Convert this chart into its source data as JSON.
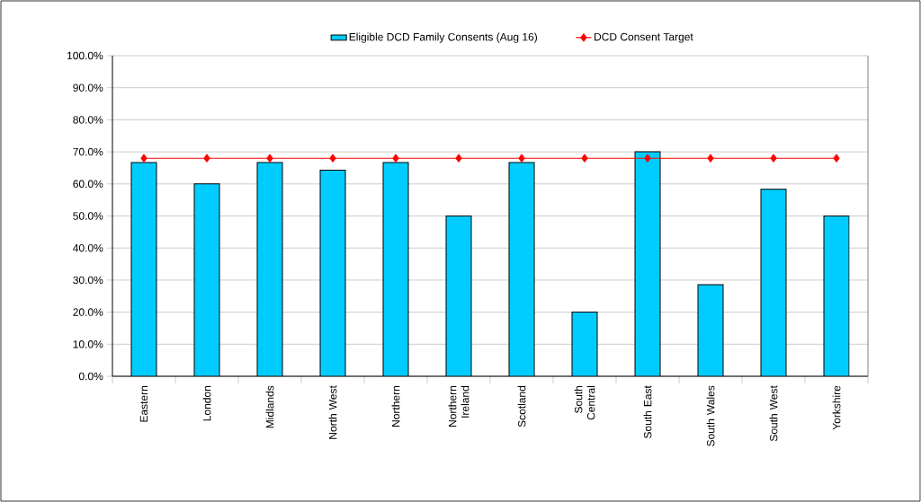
{
  "chart_data": {
    "type": "bar",
    "categories": [
      "Eastern",
      "London",
      "Midlands",
      "North West",
      "Northern",
      "Northern Ireland",
      "Scotland",
      "South Central",
      "South East",
      "South Wales",
      "South West",
      "Yorkshire"
    ],
    "series": [
      {
        "name": "Eligible DCD Family Consents (Aug 16)",
        "color": "#00ccff",
        "values": [
          66.7,
          60,
          66.7,
          64.3,
          66.7,
          50,
          66.7,
          20,
          70,
          28.6,
          58.3,
          50
        ]
      },
      {
        "name": "DCD Consent Target",
        "type": "line",
        "marker": "diamond",
        "color": "#ff0000",
        "values": [
          68,
          68,
          68,
          68,
          68,
          68,
          68,
          68,
          68,
          68,
          68,
          68
        ]
      }
    ],
    "ylim": [
      0,
      100
    ],
    "yticks": [
      {
        "value": 0,
        "label": "0.0%"
      },
      {
        "value": 10,
        "label": "10.0%"
      },
      {
        "value": 20,
        "label": "20.0%"
      },
      {
        "value": 30,
        "label": "30.0%"
      },
      {
        "value": 40,
        "label": "40.0%"
      },
      {
        "value": 50,
        "label": "50.0%"
      },
      {
        "value": 60,
        "label": "60.0%"
      },
      {
        "value": 70,
        "label": "70.0%"
      },
      {
        "value": 80,
        "label": "80.0%"
      },
      {
        "value": 90,
        "label": "90.0%"
      },
      {
        "value": 100,
        "label": "100.0%"
      }
    ],
    "grid": "y",
    "legend": "top"
  }
}
